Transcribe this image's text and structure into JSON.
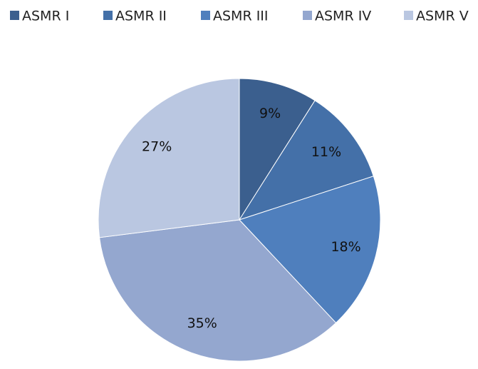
{
  "chart_data": {
    "type": "pie",
    "categories": [
      "ASMR I",
      "ASMR II",
      "ASMR III",
      "ASMR IV",
      "ASMR V"
    ],
    "values": [
      9,
      11,
      18,
      35,
      27
    ],
    "value_labels": [
      "9%",
      "11%",
      "18%",
      "35%",
      "27%"
    ],
    "colors": [
      "#3b5f8e",
      "#4470a8",
      "#4f7fbd",
      "#94a7cf",
      "#bac7e1"
    ],
    "legend": "top"
  }
}
